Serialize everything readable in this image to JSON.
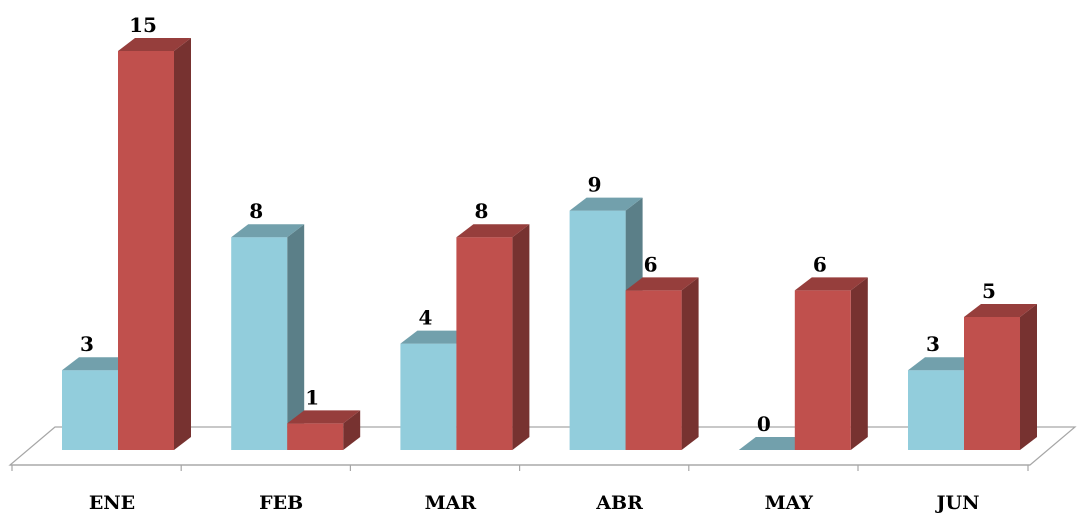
{
  "chart_data": {
    "type": "bar",
    "title": "",
    "xlabel": "",
    "ylabel": "",
    "categories": [
      "ENE",
      "FEB",
      "MAR",
      "ABR",
      "MAY",
      "JUN"
    ],
    "series": [
      {
        "values": [
          3,
          8,
          4,
          9,
          0,
          3
        ],
        "color": "#92CDDC"
      },
      {
        "values": [
          15,
          1,
          8,
          6,
          6,
          5
        ],
        "color": "#C0504D"
      }
    ],
    "ylim": [
      0,
      15
    ],
    "grid": false,
    "legend": "none",
    "style": "3d-clustered-column"
  }
}
